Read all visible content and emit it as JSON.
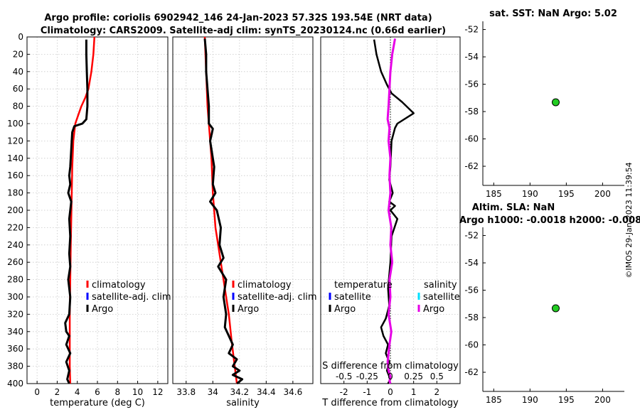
{
  "figure": {
    "title_line1": "Argo profile: coriolis 6902942_146 24-Jan-2023 57.32S 193.54E (NRT data)",
    "title_line2": "Climatology: CARS2009. Satellite-adj clim: synTS_20230124.nc (0.66d earlier)",
    "copyright": "©IMOS 29-Jan-2023 11:39:54",
    "colors": {
      "climatology": "#ff0000",
      "satellite": "#0000ff",
      "argo": "#000000",
      "salinity_sat": "#00e0ff",
      "salinity_argo": "#e600e6",
      "marker_fill": "#22cc22"
    }
  },
  "chart_data": [
    {
      "name": "temperature-panel",
      "type": "line",
      "xlabel": "temperature (deg C)",
      "ylabel": "",
      "xlim": [
        -1,
        13
      ],
      "ylim": [
        400,
        0
      ],
      "xticks": [
        0,
        2,
        4,
        6,
        8,
        10,
        12
      ],
      "yticks": [
        0,
        20,
        40,
        60,
        80,
        100,
        120,
        140,
        160,
        180,
        200,
        220,
        240,
        260,
        280,
        300,
        320,
        340,
        360,
        380,
        400
      ],
      "legend": [
        "climatology",
        "satellite-adj. clim",
        "Argo"
      ],
      "series": [
        {
          "name": "climatology",
          "x": [
            5.7,
            5.6,
            5.4,
            5.1,
            4.8,
            4.4,
            4.1,
            3.8,
            3.6,
            3.5,
            3.45,
            3.4,
            3.35,
            3.3,
            3.25,
            3.25,
            3.25,
            3.3
          ],
          "y": [
            0,
            20,
            40,
            60,
            70,
            80,
            90,
            100,
            120,
            150,
            180,
            210,
            240,
            280,
            320,
            350,
            380,
            400
          ]
        },
        {
          "name": "Argo",
          "x": [
            4.9,
            4.9,
            4.95,
            5.0,
            5.0,
            4.9,
            4.5,
            3.7,
            3.5,
            3.4,
            3.3,
            3.2,
            3.3,
            3.1,
            3.4,
            3.2,
            3.3,
            3.2,
            3.3,
            3.1,
            3.3,
            3.2,
            2.8,
            2.9,
            3.2,
            2.9,
            3.3,
            2.9,
            3.2,
            3.0,
            3.2
          ],
          "y": [
            3,
            20,
            40,
            60,
            80,
            95,
            100,
            103,
            110,
            130,
            150,
            160,
            170,
            180,
            190,
            210,
            230,
            250,
            265,
            280,
            300,
            320,
            330,
            340,
            345,
            355,
            365,
            375,
            385,
            395,
            400
          ]
        }
      ]
    },
    {
      "name": "salinity-panel",
      "type": "line",
      "xlabel": "salinity",
      "ylabel": "",
      "xlim": [
        33.7,
        34.75
      ],
      "xticks": [
        33.8,
        34,
        34.2,
        34.4,
        34.6
      ],
      "xticklabels": [
        "33.8",
        "34",
        "34.2",
        "34.4",
        "34.6"
      ],
      "ylim": [
        400,
        0
      ],
      "legend": [
        "climatology",
        "satellite-adj. clim",
        "Argo"
      ],
      "series": [
        {
          "name": "climatology",
          "x": [
            33.94,
            33.95,
            33.96,
            33.97,
            33.99,
            34.0,
            34.01,
            34.02,
            34.04,
            34.06,
            34.08,
            34.1,
            34.12,
            34.14,
            34.16,
            34.18
          ],
          "y": [
            0,
            40,
            80,
            100,
            140,
            180,
            200,
            220,
            240,
            260,
            280,
            300,
            320,
            350,
            375,
            400
          ]
        },
        {
          "name": "Argo",
          "x": [
            33.94,
            33.95,
            33.95,
            33.96,
            33.97,
            33.97,
            34.0,
            33.98,
            34.01,
            34.0,
            34.02,
            33.98,
            34.03,
            34.06,
            34.05,
            34.08,
            34.04,
            34.1,
            34.08,
            34.1,
            34.09,
            34.12,
            34.15,
            34.12,
            34.18,
            34.15,
            34.2,
            34.15,
            34.22,
            34.18
          ],
          "y": [
            2,
            20,
            40,
            60,
            80,
            100,
            106,
            120,
            150,
            170,
            180,
            190,
            200,
            220,
            240,
            255,
            265,
            280,
            300,
            320,
            335,
            345,
            355,
            365,
            372,
            380,
            385,
            390,
            395,
            400
          ]
        }
      ]
    },
    {
      "name": "difference-panel",
      "type": "line",
      "xlabel": "T difference from climatology",
      "xlabel_top": "S difference from climatology",
      "xlim": [
        -3,
        3
      ],
      "xticks": [
        -2,
        -1,
        0,
        1,
        2
      ],
      "s_xticks": [
        -0.5,
        -0.25,
        0,
        0.25,
        0.5
      ],
      "s_xticklabels": [
        "-0.5",
        "-0.25",
        "0",
        "0.25",
        "0.5"
      ],
      "s_scale": 4,
      "ylim": [
        400,
        0
      ],
      "legend_t_title": "temperature",
      "legend_s_title": "salinity",
      "legend_t": [
        "satellite",
        "Argo"
      ],
      "legend_s": [
        "satellite",
        "Argo"
      ],
      "series": [
        {
          "name": "T Argo",
          "x": [
            -0.7,
            -0.6,
            -0.4,
            -0.15,
            0.05,
            0.5,
            1.0,
            0.3,
            0.2,
            0.05,
            0.0,
            -0.05,
            0.1,
            -0.05,
            0.2,
            0.0,
            0.3,
            0.05,
            0.0,
            -0.1,
            -0.05,
            -0.2,
            -0.4,
            -0.3,
            -0.1,
            -0.2,
            -0.05,
            -0.15,
            0.0,
            -0.1
          ],
          "y": [
            3,
            20,
            40,
            55,
            65,
            75,
            88,
            100,
            105,
            120,
            150,
            165,
            180,
            190,
            195,
            200,
            210,
            230,
            260,
            290,
            310,
            325,
            335,
            345,
            355,
            365,
            375,
            385,
            395,
            400
          ]
        },
        {
          "name": "S Argo",
          "x": [
            0.05,
            0.02,
            0.0,
            -0.01,
            -0.02,
            -0.03,
            -0.01,
            -0.02,
            0.0,
            -0.01,
            0.0,
            -0.02,
            0.01,
            0.0,
            0.02,
            -0.01,
            0.0,
            -0.02,
            0.01,
            -0.01,
            -0.02,
            -0.03,
            -0.02,
            0.0,
            -0.01,
            0.0
          ],
          "y": [
            2,
            20,
            40,
            60,
            80,
            95,
            105,
            120,
            140,
            160,
            180,
            200,
            220,
            240,
            260,
            280,
            300,
            320,
            340,
            355,
            365,
            375,
            385,
            392,
            397,
            400
          ]
        }
      ]
    },
    {
      "name": "sst-map",
      "type": "scatter",
      "title": "sat. SST: NaN Argo: 5.02",
      "xlim": [
        183.5,
        203
      ],
      "ylim": [
        -63.4,
        -51.4
      ],
      "xticks": [
        185,
        190,
        195,
        200
      ],
      "yticks": [
        -52,
        -54,
        -56,
        -58,
        -60,
        -62
      ],
      "points": [
        {
          "x": 193.54,
          "y": -57.32
        }
      ]
    },
    {
      "name": "sla-map",
      "type": "scatter",
      "title_line1": "Altim. SLA: NaN",
      "title_line2": "Argo h1000: -0.0018 h2000: -0.008",
      "xlim": [
        183.5,
        203
      ],
      "ylim": [
        -63.4,
        -51.4
      ],
      "xticks": [
        185,
        190,
        195,
        200
      ],
      "yticks": [
        -52,
        -54,
        -56,
        -58,
        -60,
        -62
      ],
      "points": [
        {
          "x": 193.54,
          "y": -57.32
        }
      ]
    }
  ]
}
